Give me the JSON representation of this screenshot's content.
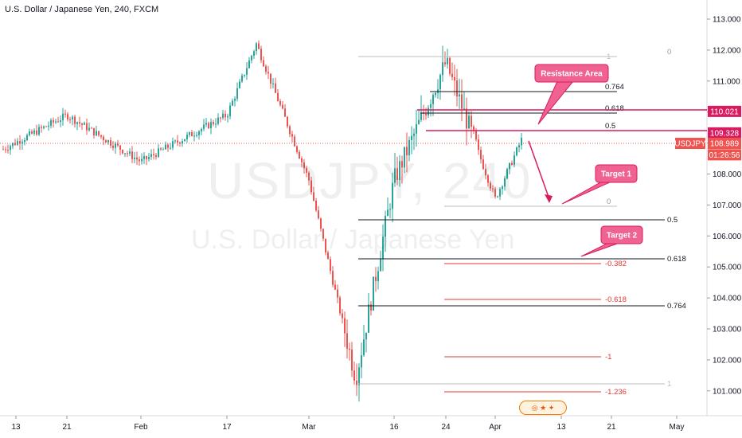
{
  "header": {
    "title": "U.S. Dollar / Japanese Yen, 240, FXCM"
  },
  "watermark": {
    "symbol": "USDJPY, 240",
    "name": "U.S. Dollar / Japanese Yen"
  },
  "price_axis": {
    "ticks": [
      "113.000",
      "112.000",
      "111.000",
      "110.000",
      "109.000",
      "108.000",
      "107.000",
      "106.000",
      "105.000",
      "104.000",
      "103.000",
      "102.000",
      "101.000"
    ],
    "tags": [
      {
        "text": "110.021",
        "color": "#d81b60",
        "price": 110.021
      },
      {
        "text": "109.328",
        "color": "#d81b60",
        "price": 109.328
      },
      {
        "text": "108.989",
        "color": "#ef5350",
        "price": 108.989
      },
      {
        "text": "01:26:56",
        "color": "#ef5350",
        "price": 108.62
      }
    ],
    "symbol_tag": "USDJPY"
  },
  "time_axis": {
    "ticks": [
      "13",
      "21",
      "Feb",
      "17",
      "Mar",
      "16",
      "24",
      "Apr",
      "13",
      "21",
      "May"
    ]
  },
  "annotations": {
    "resistance": "Resistance Area",
    "target1": "Target 1",
    "target2": "Target 2"
  },
  "fib_upper": [
    "1",
    "0.764",
    "0.618",
    "0.5",
    "0"
  ],
  "fib_lower": [
    "1",
    "0.764",
    "0.618",
    "0.5",
    "0"
  ],
  "fib_ext": [
    "-0.382",
    "-0.618",
    "-1",
    "-1.236"
  ],
  "colors": {
    "up": "#26a69a",
    "down": "#ef5350",
    "magenta": "#d81b60",
    "callout": "#f06292",
    "fib_black": "#131722",
    "fib_red": "#e53935",
    "fib_grey": "#bdbdbd"
  },
  "chart_data": {
    "type": "candlestick",
    "title": "U.S. Dollar / Japanese Yen, 240, FXCM",
    "series_name": "USDJPY",
    "last_price": 108.989,
    "ylim": [
      100.3,
      113.6
    ],
    "x_ticks": [
      "13",
      "21",
      "Feb",
      "17",
      "Mar",
      "16",
      "24",
      "Apr",
      "13",
      "21",
      "May"
    ],
    "approx_close_path": [
      {
        "t": "13",
        "price": 108.8
      },
      {
        "t": "21",
        "price": 109.9
      },
      {
        "t": "Feb",
        "price": 108.4
      },
      {
        "t": "17",
        "price": 109.9
      },
      {
        "t": "20 Feb",
        "price": 112.2
      },
      {
        "t": "Mar",
        "price": 107.8
      },
      {
        "t": "9 Mar",
        "price": 101.4
      },
      {
        "t": "16",
        "price": 107.8
      },
      {
        "t": "24",
        "price": 111.6
      },
      {
        "t": "Apr",
        "price": 107.2
      },
      {
        "t": "6 Apr",
        "price": 109.1
      }
    ],
    "levels": [
      {
        "label": "Resistance",
        "price": 110.021
      },
      {
        "label": "Resistance",
        "price": 109.328
      }
    ]
  }
}
